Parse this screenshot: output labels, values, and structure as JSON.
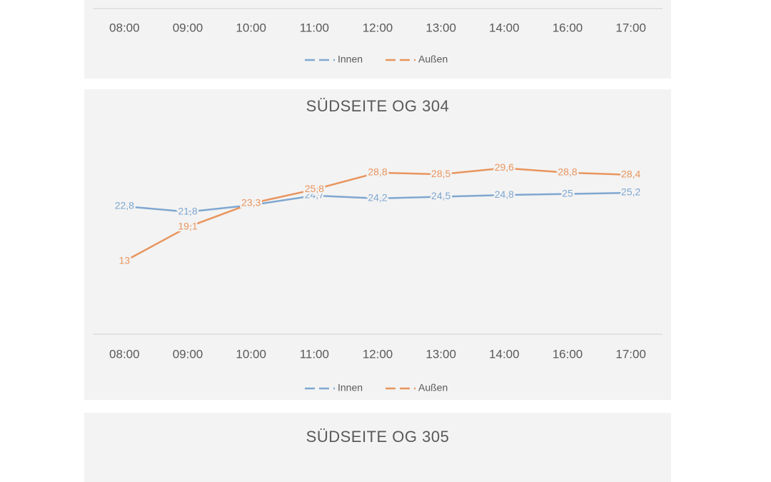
{
  "chart_data": [
    {
      "type": "line",
      "categories": [
        "08:00",
        "09:00",
        "10:00",
        "11:00",
        "12:00",
        "13:00",
        "14:00",
        "16:00",
        "17:00"
      ],
      "series": [
        {
          "name": "Innen",
          "color": "#7fa7d0"
        },
        {
          "name": "Außen",
          "color": "#e8955e"
        }
      ]
    },
    {
      "type": "line",
      "title": "SÜDSEITE OG 304",
      "categories": [
        "08:00",
        "09:00",
        "10:00",
        "11:00",
        "12:00",
        "13:00",
        "14:00",
        "16:00",
        "17:00"
      ],
      "ylim": [
        0,
        35
      ],
      "series": [
        {
          "name": "Innen",
          "color": "#7fa7d0",
          "values": [
            22.8,
            21.8,
            23,
            24.7,
            24.2,
            24.5,
            24.8,
            25,
            25.2
          ],
          "value_labels": [
            "22,8",
            "21,8",
            "23",
            "24,7",
            "24,2",
            "24,5",
            "24,8",
            "25",
            "25,2"
          ]
        },
        {
          "name": "Außen",
          "color": "#e8955e",
          "values": [
            13,
            19.1,
            23.3,
            25.8,
            28.8,
            28.5,
            29.6,
            28.8,
            28.4
          ],
          "value_labels": [
            "13",
            "19,1",
            "23,3",
            "25,8",
            "28,8",
            "28,5",
            "29,6",
            "28,8",
            "28,4"
          ]
        }
      ]
    },
    {
      "type": "line",
      "title": "SÜDSEITE OG 305"
    }
  ]
}
